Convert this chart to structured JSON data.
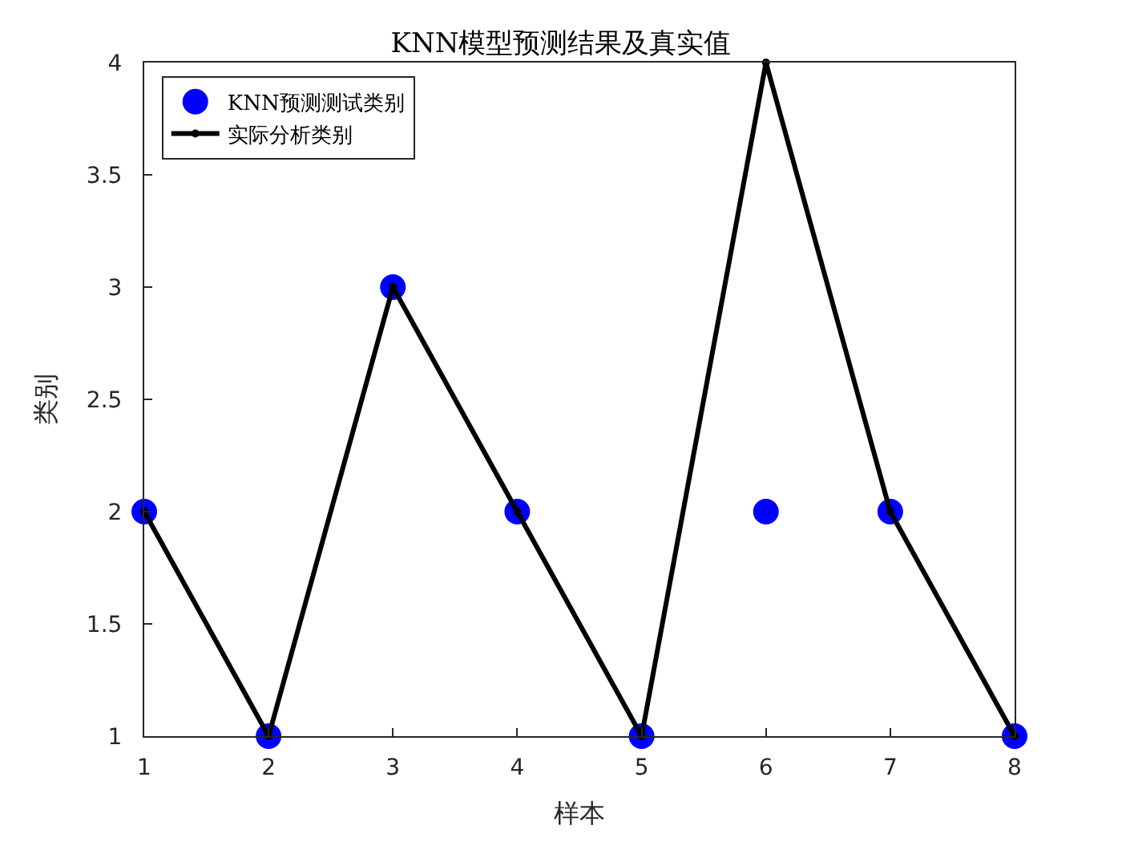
{
  "chart_data": {
    "type": "scatter",
    "title": "KNN模型预测结果及真实值",
    "xlabel": "样本",
    "ylabel": "类别",
    "x": [
      1,
      2,
      3,
      4,
      5,
      6,
      7,
      8
    ],
    "series": [
      {
        "name": "KNN预测测试类别",
        "marker": "circle",
        "color": "#0000ff",
        "values": [
          2,
          1,
          3,
          2,
          1,
          2,
          2,
          1
        ]
      },
      {
        "name": "实际分析类别",
        "type": "line",
        "marker": "circle",
        "line_style": "solid",
        "color": "#000000",
        "values": [
          2,
          1,
          3,
          2,
          1,
          4,
          2,
          1
        ]
      }
    ],
    "xlim": [
      1,
      8
    ],
    "xticks": [
      1,
      2,
      3,
      4,
      5,
      6,
      7,
      8
    ],
    "ylim": [
      1,
      4
    ],
    "yticks": [
      1,
      1.5,
      2,
      2.5,
      3,
      3.5,
      4
    ],
    "grid": false,
    "legend": "top left"
  }
}
